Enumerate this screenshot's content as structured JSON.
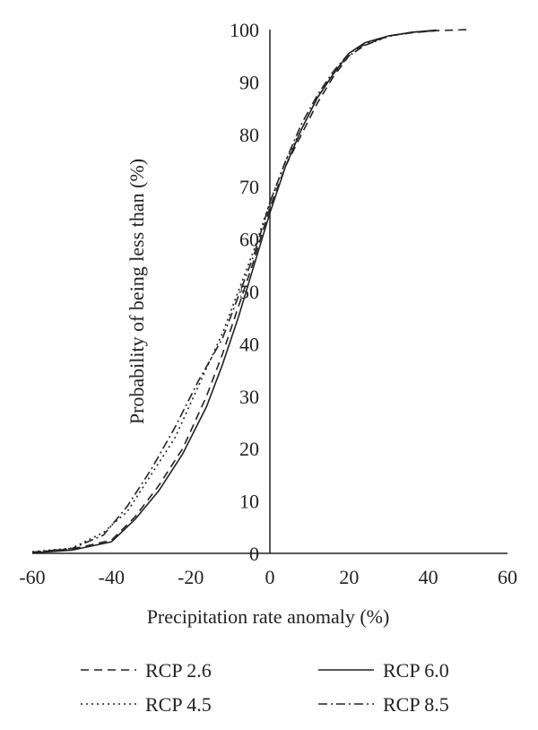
{
  "chart_data": {
    "type": "line",
    "xlabel": "Precipitation rate anomaly (%)",
    "ylabel": "Probability of being less than (%)",
    "xlim": [
      -60,
      60
    ],
    "ylim": [
      0,
      100
    ],
    "xticks": [
      -60,
      -40,
      -20,
      0,
      20,
      40,
      60
    ],
    "yticks": [
      0,
      10,
      20,
      30,
      40,
      50,
      60,
      70,
      80,
      90,
      100
    ],
    "grid": false,
    "legend_position": "bottom",
    "series": [
      {
        "name": "RCP 2.6",
        "style": "dashed",
        "points": [
          [
            -60,
            0.2
          ],
          [
            -50,
            0.8
          ],
          [
            -40,
            2.5
          ],
          [
            -34,
            7
          ],
          [
            -28,
            13
          ],
          [
            -22,
            20
          ],
          [
            -16,
            30
          ],
          [
            -12,
            38
          ],
          [
            -8,
            47
          ],
          [
            -4,
            56
          ],
          [
            0,
            66
          ],
          [
            4,
            74
          ],
          [
            8,
            80
          ],
          [
            12,
            86
          ],
          [
            16,
            91
          ],
          [
            20,
            95
          ],
          [
            24,
            97
          ],
          [
            30,
            98.8
          ],
          [
            36,
            99.4
          ],
          [
            42,
            99.8
          ],
          [
            50,
            100
          ]
        ]
      },
      {
        "name": "RCP 4.5",
        "style": "dotted",
        "points": [
          [
            -60,
            0.3
          ],
          [
            -50,
            1
          ],
          [
            -42,
            4
          ],
          [
            -36,
            8
          ],
          [
            -30,
            15
          ],
          [
            -24,
            22
          ],
          [
            -18,
            32
          ],
          [
            -12,
            42
          ],
          [
            -8,
            50
          ],
          [
            -4,
            58
          ],
          [
            0,
            67
          ],
          [
            4,
            75
          ],
          [
            8,
            81
          ],
          [
            12,
            87
          ],
          [
            16,
            91.5
          ],
          [
            20,
            95
          ],
          [
            24,
            97
          ],
          [
            30,
            98.7
          ],
          [
            36,
            99.5
          ],
          [
            42,
            99.8
          ]
        ]
      },
      {
        "name": "RCP 6.0",
        "style": "solid",
        "points": [
          [
            -60,
            0.1
          ],
          [
            -50,
            0.6
          ],
          [
            -40,
            2.2
          ],
          [
            -34,
            6.5
          ],
          [
            -28,
            12
          ],
          [
            -22,
            19
          ],
          [
            -16,
            28
          ],
          [
            -12,
            36
          ],
          [
            -8,
            45
          ],
          [
            -4,
            55
          ],
          [
            0,
            65
          ],
          [
            4,
            74
          ],
          [
            8,
            81
          ],
          [
            12,
            87
          ],
          [
            16,
            91.5
          ],
          [
            20,
            95.5
          ],
          [
            24,
            97.5
          ],
          [
            30,
            98.8
          ],
          [
            36,
            99.5
          ],
          [
            42,
            99.9
          ]
        ]
      },
      {
        "name": "RCP 8.5",
        "style": "dashdot",
        "points": [
          [
            -60,
            0.2
          ],
          [
            -50,
            0.9
          ],
          [
            -42,
            3.5
          ],
          [
            -36,
            9
          ],
          [
            -30,
            16
          ],
          [
            -24,
            24
          ],
          [
            -18,
            33
          ],
          [
            -12,
            41
          ],
          [
            -8,
            49
          ],
          [
            -4,
            57
          ],
          [
            0,
            67
          ],
          [
            4,
            75
          ],
          [
            8,
            82
          ],
          [
            12,
            87.5
          ],
          [
            16,
            92
          ],
          [
            20,
            95.5
          ],
          [
            24,
            97.2
          ],
          [
            30,
            98.8
          ],
          [
            36,
            99.5
          ],
          [
            42,
            99.8
          ]
        ]
      }
    ]
  }
}
